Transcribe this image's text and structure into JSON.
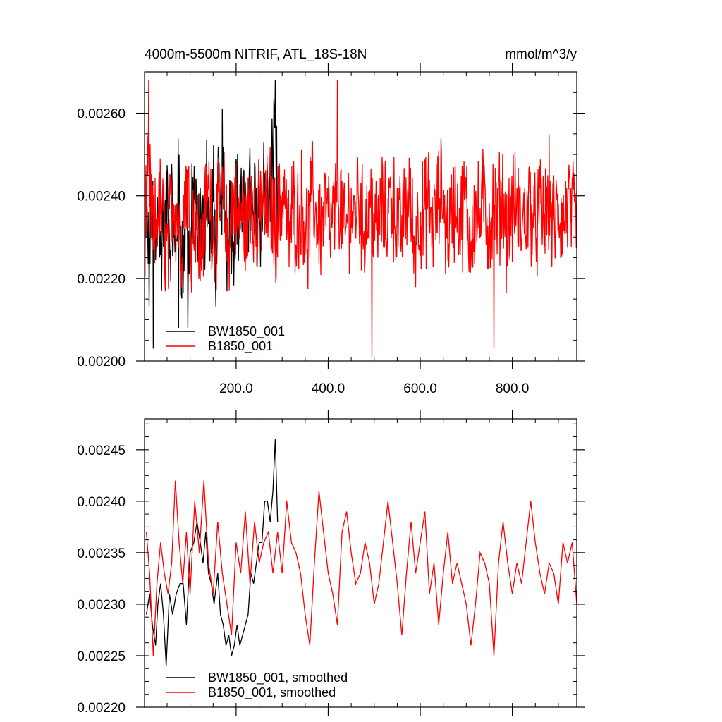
{
  "chart_data": [
    {
      "type": "line",
      "title": "4000m-5500m NITRIF, ATL_18S-18N",
      "title_right": "mmol/m^3/y",
      "xlim": [
        1,
        940
      ],
      "ylim": [
        0.002,
        0.0027
      ],
      "x_ticks": [
        200,
        400,
        600,
        800
      ],
      "x_tick_labels": [
        "200.0",
        "400.0",
        "600.0",
        "800.0"
      ],
      "y_ticks": [
        0.002,
        0.0022,
        0.0024,
        0.0026
      ],
      "y_tick_labels": [
        "0.00200",
        "0.00220",
        "0.00240",
        "0.00260"
      ],
      "legend_position": "bottom-left",
      "series": [
        {
          "name": "BW1850_001",
          "color": "#000000",
          "x_start": 1,
          "x_end": 290,
          "approx_values_every_5_years": [
            0.00231,
            0.00235,
            0.00222,
            0.00241,
            0.00229,
            0.00226,
            0.00244,
            0.00221,
            0.00235,
            0.0023,
            0.00242,
            0.00227,
            0.00238,
            0.00224,
            0.00233,
            0.00246,
            0.00229,
            0.00222,
            0.0024,
            0.00232,
            0.00226,
            0.00238,
            0.00243,
            0.00225,
            0.00231,
            0.00236,
            0.00228,
            0.00248,
            0.00234,
            0.0023,
            0.00242,
            0.00225,
            0.00239,
            0.00233,
            0.00246,
            0.00237,
            0.00228,
            0.00241,
            0.00235,
            0.00231,
            0.00245,
            0.00232,
            0.00237,
            0.0024,
            0.00229,
            0.00236,
            0.00243,
            0.00232,
            0.00238,
            0.00235,
            0.0024,
            0.00233,
            0.00246,
            0.00237,
            0.00241,
            0.00235,
            0.00252,
            0.00262,
            0.00234
          ],
          "notable_points": [
            [
              20,
              0.00203
            ],
            [
              75,
              0.00208
            ],
            [
              95,
              0.00208
            ],
            [
              170,
              0.00261
            ],
            [
              285,
              0.00268
            ]
          ]
        },
        {
          "name": "B1850_001",
          "color": "#ff0000",
          "x_start": 1,
          "x_end": 940,
          "approx_values_every_10_years": [
            0.00232,
            0.00244,
            0.00228,
            0.00239,
            0.00233,
            0.00226,
            0.00241,
            0.00236,
            0.00229,
            0.00245,
            0.00231,
            0.00238,
            0.00224,
            0.00236,
            0.00242,
            0.0023,
            0.00235,
            0.00239,
            0.00227,
            0.00241,
            0.00233,
            0.00237,
            0.00231,
            0.00244,
            0.00229,
            0.00238,
            0.00235,
            0.0024,
            0.00232,
            0.00236,
            0.00243,
            0.0023,
            0.00237,
            0.00234,
            0.00239,
            0.00228,
            0.00241,
            0.00235,
            0.00233,
            0.00238,
            0.00231,
            0.00236,
            0.0024,
            0.00229,
            0.00237,
            0.00234,
            0.00242,
            0.00232,
            0.00236,
            0.00239,
            0.0023,
            0.00238,
            0.00233,
            0.00241,
            0.00235,
            0.00231,
            0.00237,
            0.0024,
            0.00228,
            0.00236,
            0.00234,
            0.00239,
            0.00232,
            0.00237,
            0.00242,
            0.00231,
            0.00235,
            0.00238,
            0.00233,
            0.0024,
            0.00229,
            0.00236,
            0.00234,
            0.00239,
            0.00232,
            0.00237,
            0.00235,
            0.00241,
            0.0023,
            0.00236,
            0.00238,
            0.00233,
            0.00235,
            0.00239,
            0.00231,
            0.00237,
            0.00234,
            0.0024,
            0.00232,
            0.00236,
            0.00233,
            0.00238,
            0.00235,
            0.00234
          ],
          "notable_points": [
            [
              10,
              0.00268
            ],
            [
              420,
              0.00268
            ],
            [
              495,
              0.00201
            ],
            [
              760,
              0.00203
            ]
          ]
        }
      ]
    },
    {
      "type": "line",
      "title": "",
      "xlim": [
        1,
        940
      ],
      "ylim": [
        0.0022,
        0.00248
      ],
      "y_ticks": [
        0.0022,
        0.00225,
        0.0023,
        0.00235,
        0.0024,
        0.00245
      ],
      "y_tick_labels": [
        "0.00220",
        "0.00225",
        "0.00230",
        "0.00235",
        "0.00240",
        "0.00245"
      ],
      "legend_position": "bottom-left",
      "series": [
        {
          "name": "BW1850_001, smoothed",
          "color": "#000000",
          "x": [
            5,
            12,
            18,
            25,
            30,
            36,
            42,
            48,
            55,
            62,
            70,
            78,
            85,
            92,
            100,
            108,
            115,
            122,
            128,
            134,
            140,
            146,
            152,
            160,
            166,
            172,
            178,
            184,
            190,
            196,
            202,
            208,
            214,
            220,
            226,
            232,
            238,
            244,
            250,
            256,
            262,
            268,
            274,
            280,
            285,
            290
          ],
          "y": [
            0.00229,
            0.00231,
            0.00228,
            0.00226,
            0.0023,
            0.00232,
            0.00229,
            0.00224,
            0.00231,
            0.00229,
            0.00231,
            0.00232,
            0.00232,
            0.00228,
            0.00235,
            0.00236,
            0.00238,
            0.00236,
            0.00234,
            0.00237,
            0.00233,
            0.00232,
            0.0023,
            0.00233,
            0.00229,
            0.00228,
            0.00226,
            0.00227,
            0.00225,
            0.00226,
            0.00228,
            0.00226,
            0.00227,
            0.00228,
            0.00229,
            0.00233,
            0.00232,
            0.00234,
            0.00236,
            0.00236,
            0.0024,
            0.0024,
            0.00238,
            0.00241,
            0.00246,
            0.00238
          ]
        },
        {
          "name": "B1850_001, smoothed",
          "color": "#ff0000",
          "x": [
            5,
            12,
            20,
            28,
            36,
            44,
            52,
            60,
            68,
            76,
            84,
            92,
            100,
            110,
            120,
            130,
            140,
            150,
            160,
            170,
            180,
            190,
            200,
            210,
            220,
            230,
            240,
            250,
            260,
            270,
            280,
            290,
            300,
            310,
            320,
            330,
            340,
            350,
            360,
            370,
            380,
            390,
            400,
            410,
            420,
            430,
            440,
            450,
            460,
            470,
            480,
            490,
            500,
            510,
            520,
            530,
            540,
            550,
            560,
            570,
            580,
            590,
            600,
            610,
            620,
            630,
            640,
            650,
            660,
            670,
            680,
            690,
            700,
            710,
            720,
            730,
            740,
            750,
            760,
            770,
            780,
            790,
            800,
            810,
            820,
            830,
            840,
            850,
            860,
            870,
            880,
            890,
            900,
            910,
            920,
            930,
            940
          ],
          "y": [
            0.00237,
            0.00233,
            0.00225,
            0.00232,
            0.00236,
            0.00233,
            0.00231,
            0.00234,
            0.00242,
            0.00236,
            0.00232,
            0.00237,
            0.00231,
            0.0024,
            0.00235,
            0.00242,
            0.00234,
            0.00231,
            0.00238,
            0.00233,
            0.0023,
            0.00227,
            0.00236,
            0.00233,
            0.00239,
            0.00232,
            0.00238,
            0.00234,
            0.00236,
            0.00237,
            0.00233,
            0.00237,
            0.00233,
            0.0024,
            0.00236,
            0.00235,
            0.00233,
            0.00229,
            0.00226,
            0.00234,
            0.00241,
            0.00237,
            0.00233,
            0.00231,
            0.00228,
            0.00237,
            0.00239,
            0.00235,
            0.00232,
            0.00233,
            0.00236,
            0.00234,
            0.0023,
            0.00232,
            0.00236,
            0.0024,
            0.00236,
            0.00232,
            0.00227,
            0.00233,
            0.00238,
            0.00233,
            0.00236,
            0.00239,
            0.00231,
            0.00234,
            0.00228,
            0.00233,
            0.00237,
            0.00232,
            0.00234,
            0.00232,
            0.0023,
            0.00226,
            0.0023,
            0.00235,
            0.00234,
            0.00232,
            0.00225,
            0.00234,
            0.00238,
            0.00234,
            0.00231,
            0.00234,
            0.00232,
            0.00236,
            0.0024,
            0.00236,
            0.00233,
            0.00231,
            0.00234,
            0.00233,
            0.0023,
            0.00236,
            0.00234,
            0.00236,
            0.0023
          ]
        }
      ]
    }
  ]
}
